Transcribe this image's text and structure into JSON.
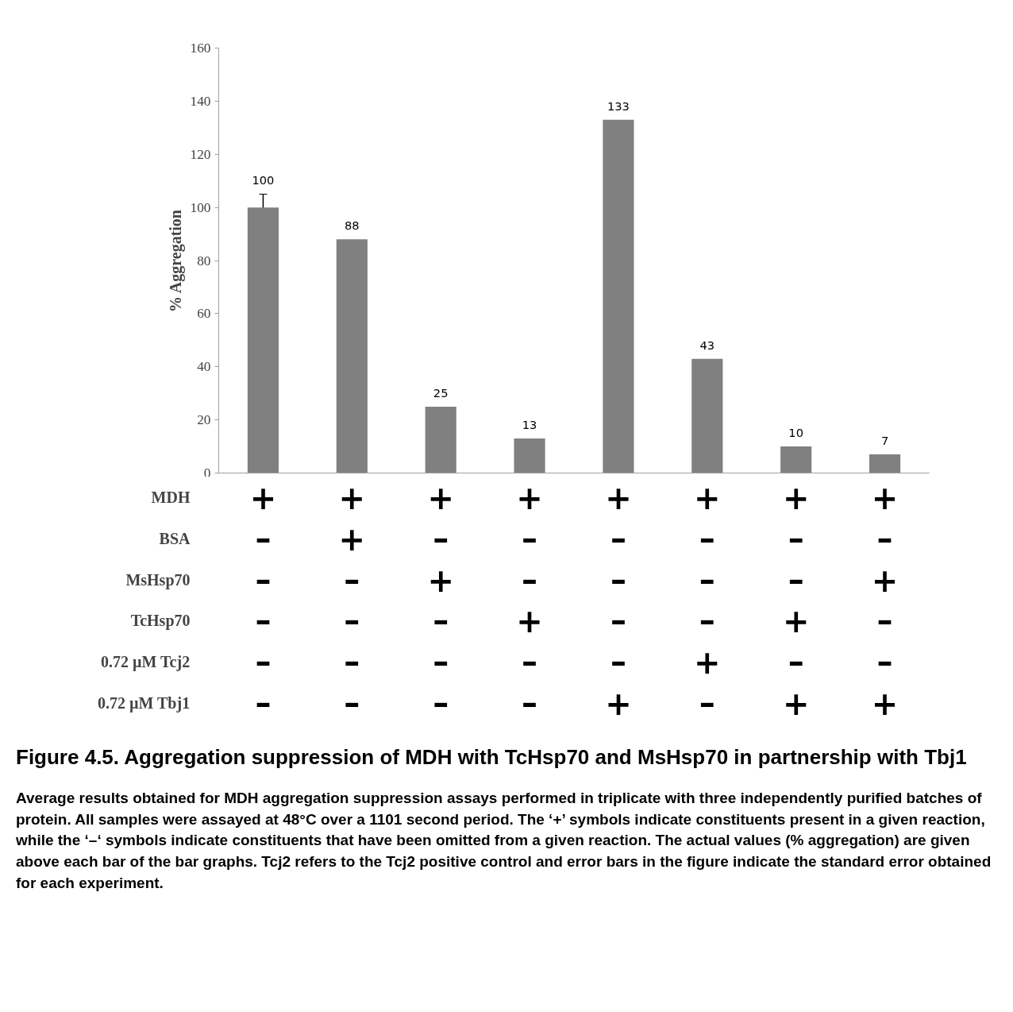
{
  "chart_data": {
    "type": "bar",
    "title": "Figure 4.5. Aggregation suppression of MDH with TcHsp70 and MsHsp70 in partnership with Tbj1",
    "ylabel": "% Aggregation",
    "categories": [
      "+\n–\n–\n–\n–\n–",
      "+\n+\n–\n–\n–\n–",
      "+\n–\n+\n–\n–\n–",
      "+\n–\n–\n+\n–\n–",
      "+\n–\n–\n–\n–\n+",
      "+\n–\n–\n–\n+\n–",
      "+\n–\n–\n+\n–\n+",
      "+\n–\n+\n–\n–\n+"
    ],
    "values": [
      100,
      88,
      25,
      13,
      133,
      43,
      10,
      7
    ],
    "errors": [
      5,
      null,
      null,
      null,
      null,
      null,
      null,
      null
    ],
    "color": "#808080",
    "data_labels": true,
    "ylim": [
      0,
      160
    ],
    "yticks": [
      0,
      20,
      40,
      60,
      80,
      100,
      120,
      140,
      160
    ],
    "grid": false,
    "annotations": [
      "MDH",
      "BSA",
      "MsHsp70",
      "TcHsp70",
      "0.72 µM Tcj2",
      "0.72 µM Tbj1",
      "Average results obtained for MDH aggregation suppression assays performed in triplicate with three independently purified batches of protein. All samples were assayed at 48°C over a 1101 second period. The ‘+’ symbols indicate constituents present in a given reaction, while the ‘–‘ symbols indicate constituents that have been omitted from a given reaction. The actual values (% aggregation) are given above each bar of the bar graphs. Tcj2 refers to the Tcj2 positive control and error bars in the figure indicate the standard error obtained for each experiment."
    ]
  }
}
